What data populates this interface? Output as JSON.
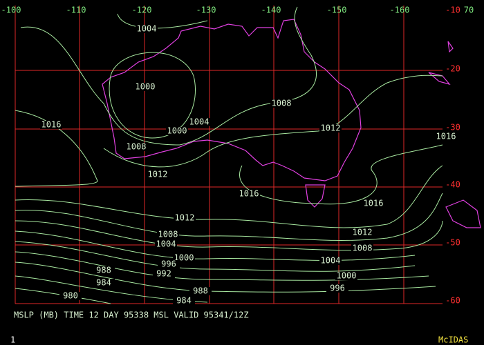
{
  "map": {
    "lon_labels": [
      "-100",
      "-110",
      "-120",
      "-130",
      "-140",
      "-150",
      "-160",
      "70"
    ],
    "lat_labels": [
      "-10",
      "-20",
      "-30",
      "-40",
      "-50",
      "-60"
    ],
    "isobar_labels": [
      "1004",
      "1000",
      "1008",
      "1016",
      "1004",
      "1000",
      "1012",
      "1016",
      "1008",
      "1012",
      "1016",
      "1016",
      "1012",
      "1012",
      "1008",
      "1004",
      "1008",
      "1000",
      "1004",
      "996",
      "992",
      "1000",
      "988",
      "984",
      "988",
      "996",
      "980",
      "984"
    ],
    "caption": "MSLP (MB) TIME 12 DAY 95338 MSL VALID 95341/12Z",
    "frame_number": "1",
    "brand": "McIDAS"
  }
}
